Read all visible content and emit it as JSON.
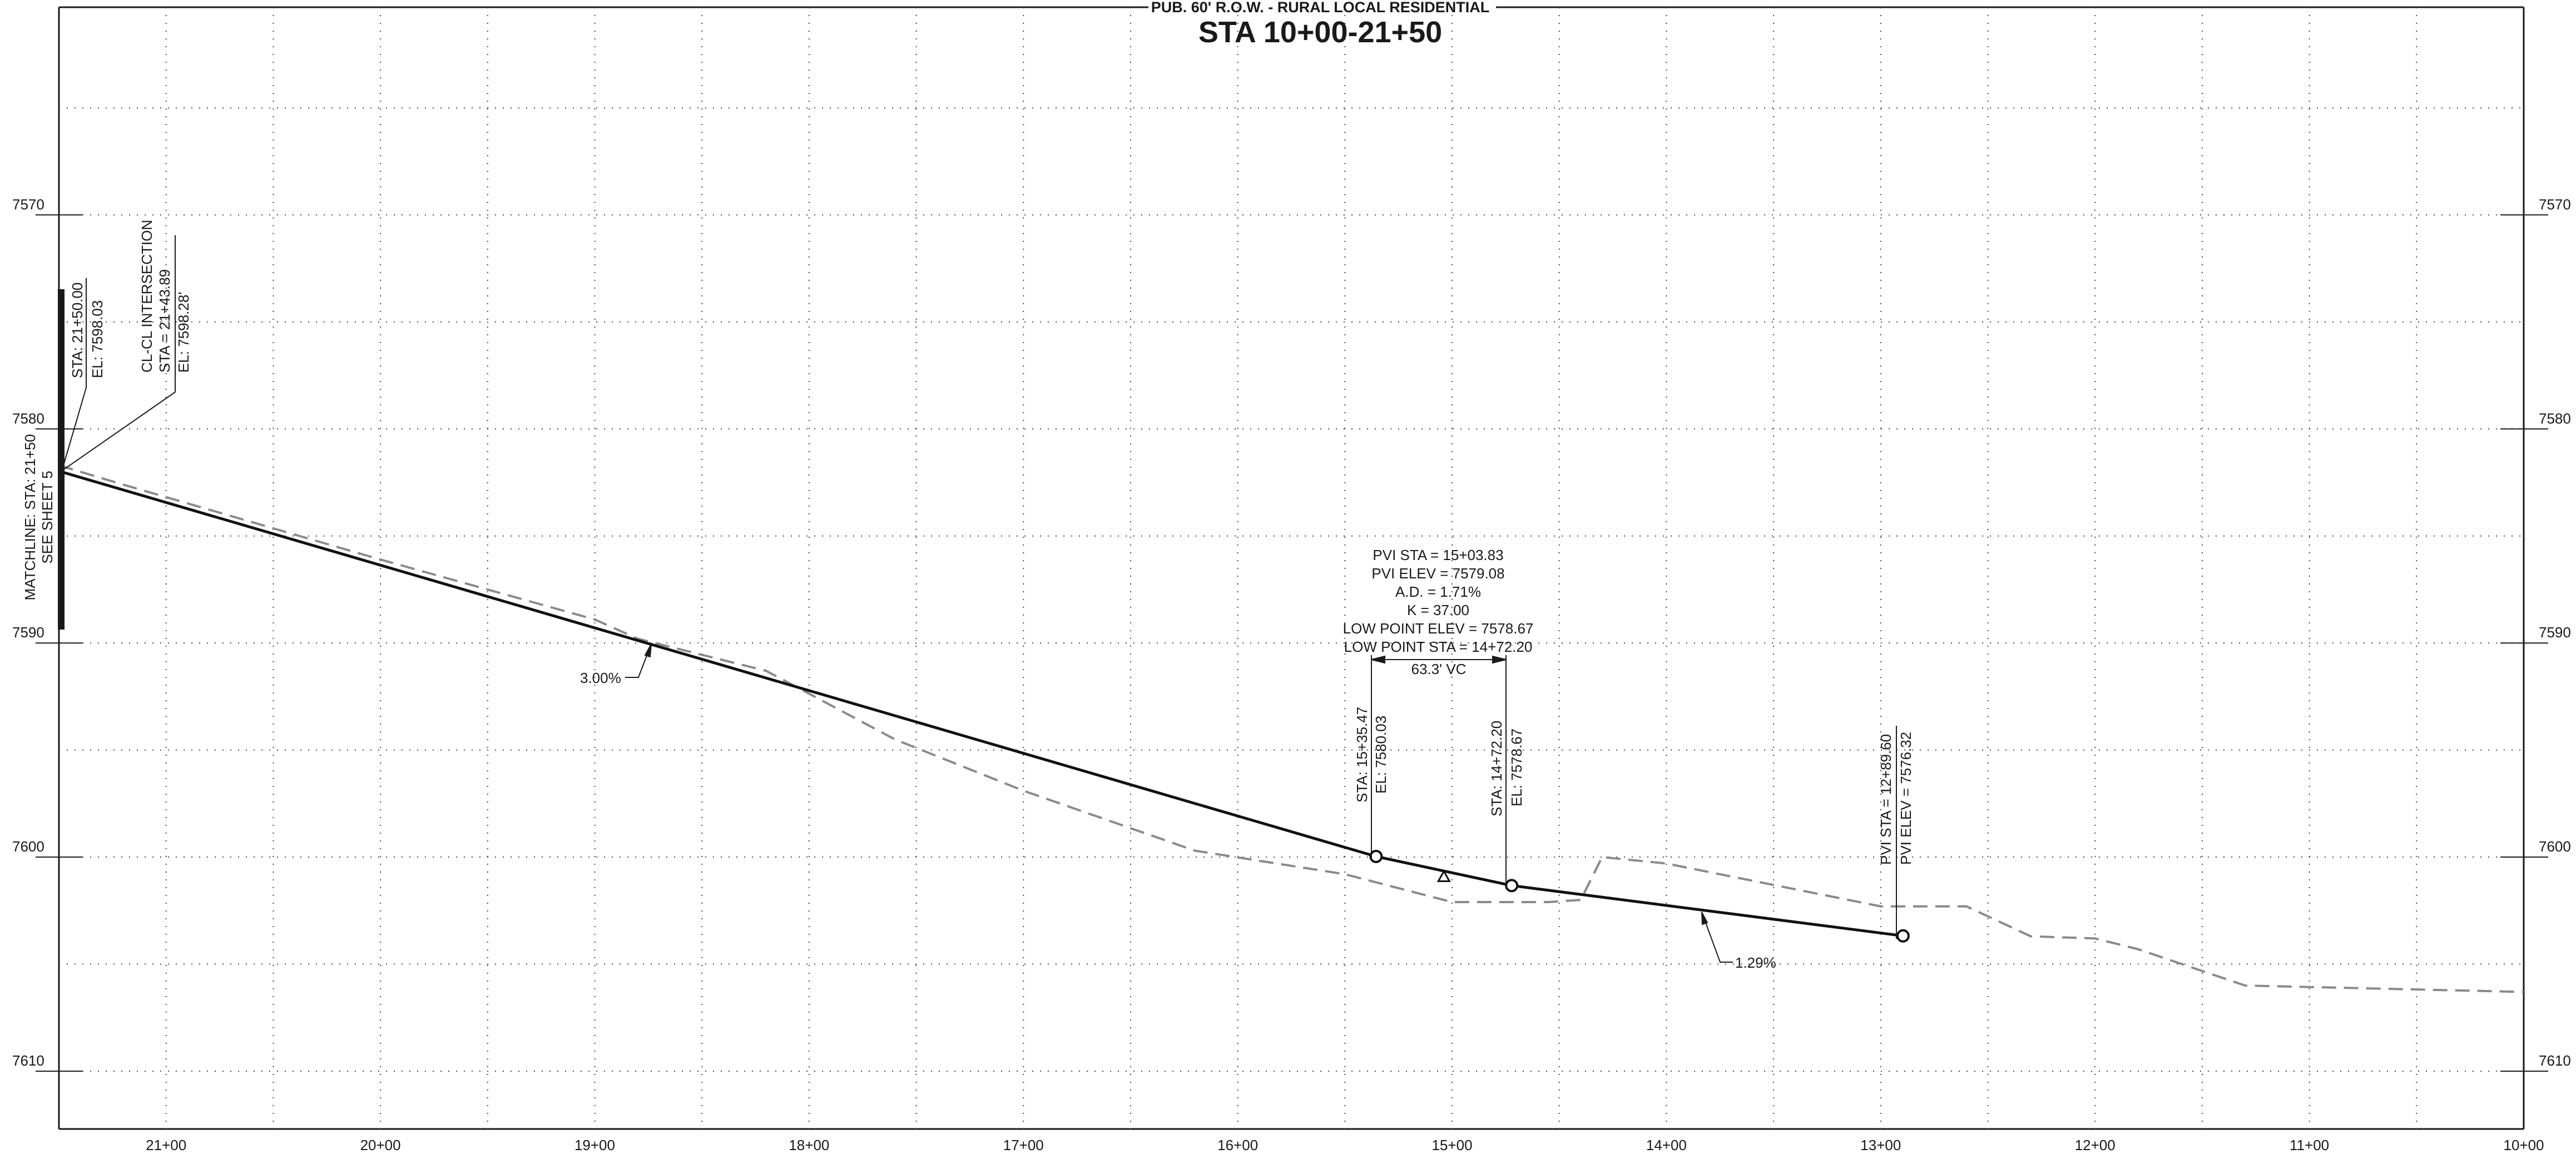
{
  "header": {
    "subtitle": "PUB. 60' R.O.W. - RURAL LOCAL RESIDENTIAL",
    "title": "STA 10+00-21+50"
  },
  "elevation_labels": [
    "7610",
    "7600",
    "7590",
    "7580",
    "7570"
  ],
  "station_labels": [
    "21+00",
    "20+00",
    "19+00",
    "18+00",
    "17+00",
    "16+00",
    "15+00",
    "14+00",
    "13+00",
    "12+00",
    "11+00",
    "10+00"
  ],
  "matchline": {
    "line1": "MATCHLINE: STA: 21+50",
    "line2": "SEE SHEET 5"
  },
  "start_callout": {
    "sta": "STA: 21+50.00",
    "el": "EL: 7598.03"
  },
  "intersection_callout": {
    "title": "CL-CL INTERSECTION",
    "sta": "STA = 21+43.89",
    "el": "EL: 7598.28'"
  },
  "grade_labels": {
    "left": "3.00%",
    "right": "1.29%"
  },
  "pvi_block": {
    "sta": "PVI STA = 15+03.83",
    "elev": "PVI ELEV = 7579.08",
    "ad": "A.D. = 1.71%",
    "k": "K = 37.00",
    "low_elev": "LOW POINT ELEV = 7578.67",
    "low_sta": "LOW POINT STA = 14+72.20",
    "vc": "63.3' VC"
  },
  "pvc_callout": {
    "sta": "STA: 15+35.47",
    "el": "EL: 7580.03"
  },
  "pvt_callout": {
    "sta": "STA: 14+72.20",
    "el": "EL: 7578.67"
  },
  "pvi2_callout": {
    "sta": "PVI STA = 12+89.60",
    "elev": "PVI ELEV = 7576.32"
  },
  "chart_data": {
    "type": "line",
    "title": "STA 10+00-21+50",
    "subtitle": "PUB. 60' R.O.W. - RURAL LOCAL RESIDENTIAL",
    "x_unit": "station (ft), decreasing left to right",
    "xlim": [
      2150,
      1000
    ],
    "ylim": [
      7567.3,
      7619.7
    ],
    "y_ticks": [
      7570,
      7580,
      7590,
      7600,
      7610
    ],
    "x_ticks": [
      2100,
      2000,
      1900,
      1800,
      1700,
      1600,
      1500,
      1400,
      1300,
      1200,
      1100,
      1000
    ],
    "grid": true,
    "series": [
      {
        "name": "proposed",
        "style": "solid",
        "x": [
          2150,
          1535.47,
          1472.2,
          1289.6
        ],
        "y": [
          7598.03,
          7580.03,
          7578.67,
          7576.32
        ]
      },
      {
        "name": "existing",
        "style": "dashed",
        "x": [
          2150,
          2120,
          2000,
          1900,
          1880,
          1820,
          1760,
          1700,
          1620,
          1550,
          1500,
          1455,
          1440,
          1430,
          1400,
          1300,
          1260,
          1230,
          1200,
          1180,
          1130,
          1000
        ],
        "y": [
          7598.3,
          7597.4,
          7593.9,
          7591.1,
          7590.2,
          7588.7,
          7585.5,
          7583.1,
          7580.3,
          7579.2,
          7577.9,
          7577.9,
          7578.0,
          7580.0,
          7579.7,
          7577.7,
          7577.7,
          7576.3,
          7576.2,
          7575.7,
          7574.0,
          7573.7
        ]
      }
    ],
    "points": [
      {
        "x": 1535.47,
        "y": 7580.03,
        "marker": "circle"
      },
      {
        "x": 1472.2,
        "y": 7578.67,
        "marker": "circle"
      },
      {
        "x": 1289.6,
        "y": 7576.32,
        "marker": "circle"
      },
      {
        "x": 1503.83,
        "y": 7579.08,
        "marker": "triangle"
      }
    ],
    "grades": [
      "3.00%",
      "1.29%"
    ]
  }
}
